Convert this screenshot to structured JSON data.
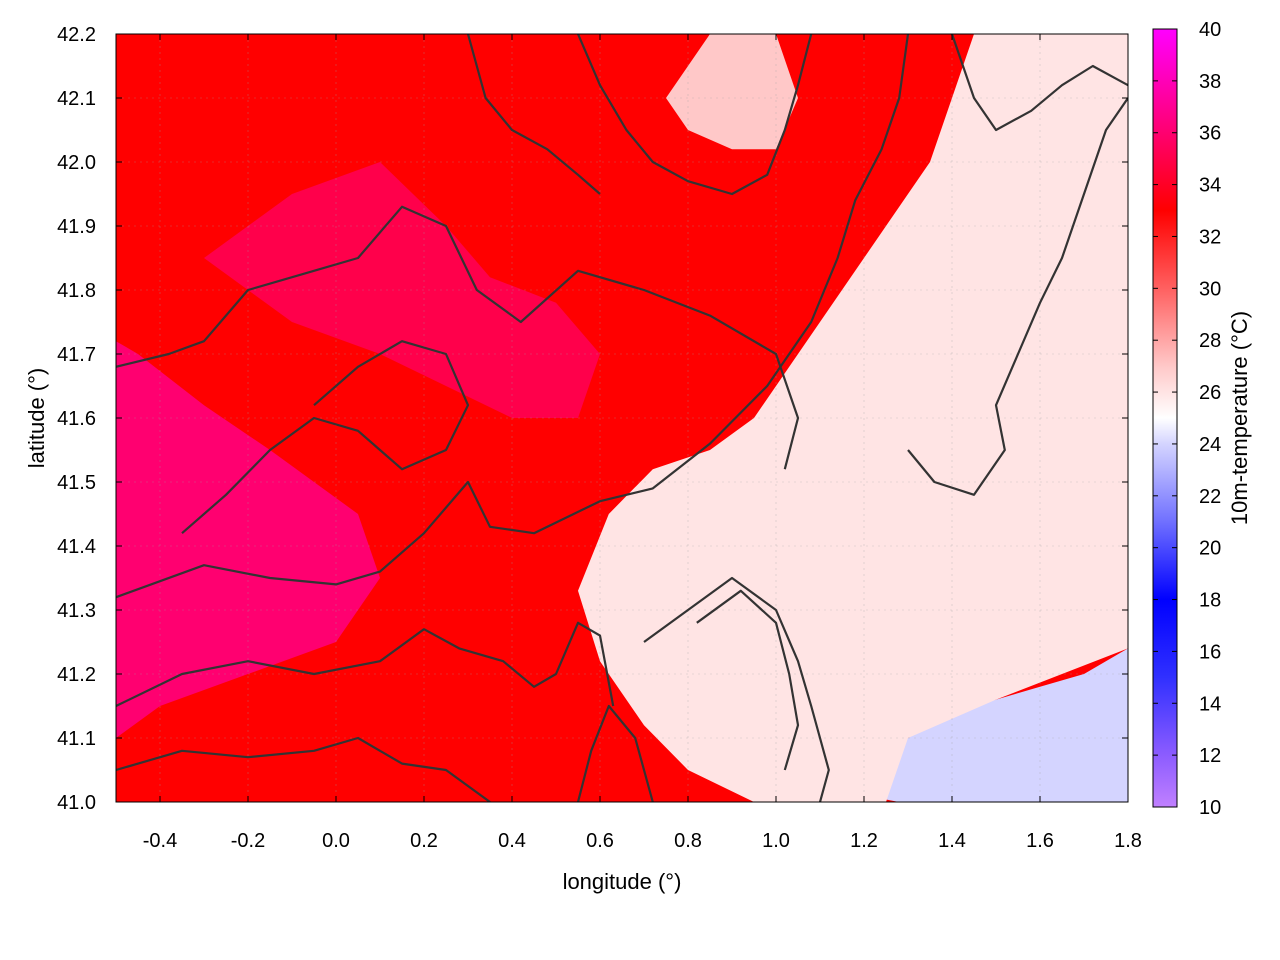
{
  "chart_data": {
    "type": "heatmap",
    "title": "",
    "xlabel": "longitude (°)",
    "ylabel": "latitude (°)",
    "colorbar_label": "10m-temperature (°C)",
    "xlim": [
      -0.5,
      1.8
    ],
    "ylim": [
      41.0,
      42.2
    ],
    "color_range": [
      10,
      40
    ],
    "x_ticks": [
      "-0.4",
      "-0.2",
      "0.0",
      "0.2",
      "0.4",
      "0.6",
      "0.8",
      "1.0",
      "1.2",
      "1.4",
      "1.6",
      "1.8"
    ],
    "x_tick_values": [
      -0.4,
      -0.2,
      0.0,
      0.2,
      0.4,
      0.6,
      0.8,
      1.0,
      1.2,
      1.4,
      1.6,
      1.8
    ],
    "y_ticks": [
      "41.0",
      "41.1",
      "41.2",
      "41.3",
      "41.4",
      "41.5",
      "41.6",
      "41.7",
      "41.8",
      "41.9",
      "42.0",
      "42.1",
      "42.2"
    ],
    "y_tick_values": [
      41.0,
      41.1,
      41.2,
      41.3,
      41.4,
      41.5,
      41.6,
      41.7,
      41.8,
      41.9,
      42.0,
      42.1,
      42.2
    ],
    "colorbar_ticks": [
      "10",
      "12",
      "14",
      "16",
      "18",
      "20",
      "22",
      "24",
      "26",
      "28",
      "30",
      "32",
      "34",
      "36",
      "38",
      "40"
    ],
    "colorbar_tick_values": [
      10,
      12,
      14,
      16,
      18,
      20,
      22,
      24,
      26,
      28,
      30,
      32,
      34,
      36,
      38,
      40
    ],
    "colormap": [
      {
        "value": 10,
        "color": "#c080ff"
      },
      {
        "value": 12,
        "color": "#8c5cff"
      },
      {
        "value": 15,
        "color": "#3030ff"
      },
      {
        "value": 18,
        "color": "#0000ff"
      },
      {
        "value": 21,
        "color": "#7070ff"
      },
      {
        "value": 24,
        "color": "#d4d4ff"
      },
      {
        "value": 25,
        "color": "#ffffff"
      },
      {
        "value": 27,
        "color": "#ffc8c8"
      },
      {
        "value": 30,
        "color": "#ff6060"
      },
      {
        "value": 33,
        "color": "#ff0000"
      },
      {
        "value": 36,
        "color": "#ff0070"
      },
      {
        "value": 40,
        "color": "#ff00ff"
      }
    ],
    "grid": true,
    "regions": [
      {
        "name": "sea",
        "value": 24,
        "points": [
          [
            1.28,
            41.0
          ],
          [
            1.8,
            41.0
          ],
          [
            1.8,
            41.24
          ],
          [
            1.7,
            41.2
          ],
          [
            1.6,
            41.18
          ],
          [
            1.5,
            41.16
          ],
          [
            1.4,
            41.14
          ],
          [
            1.3,
            41.1
          ],
          [
            1.22,
            41.07
          ],
          [
            1.15,
            41.05
          ],
          [
            1.05,
            41.03
          ]
        ]
      },
      {
        "name": "cool-zone",
        "value": 26,
        "points": [
          [
            1.25,
            41.0
          ],
          [
            0.95,
            41.0
          ],
          [
            0.8,
            41.05
          ],
          [
            0.7,
            41.12
          ],
          [
            0.6,
            41.22
          ],
          [
            0.55,
            41.33
          ],
          [
            0.62,
            41.45
          ],
          [
            0.72,
            41.52
          ],
          [
            0.85,
            41.55
          ],
          [
            0.95,
            41.6
          ],
          [
            1.05,
            41.7
          ],
          [
            1.15,
            41.8
          ],
          [
            1.25,
            41.9
          ],
          [
            1.35,
            42.0
          ],
          [
            1.4,
            42.1
          ],
          [
            1.45,
            42.2
          ],
          [
            1.8,
            42.2
          ],
          [
            1.8,
            41.24
          ],
          [
            1.5,
            41.16
          ],
          [
            1.3,
            41.1
          ]
        ]
      },
      {
        "name": "ne-cool",
        "value": 27,
        "points": [
          [
            0.75,
            42.1
          ],
          [
            0.85,
            42.2
          ],
          [
            1.0,
            42.2
          ],
          [
            1.05,
            42.1
          ],
          [
            1.0,
            42.02
          ],
          [
            0.9,
            42.02
          ],
          [
            0.8,
            42.05
          ]
        ]
      },
      {
        "name": "hot-core-west",
        "value": 36,
        "points": [
          [
            -0.5,
            41.1
          ],
          [
            -0.4,
            41.15
          ],
          [
            -0.2,
            41.2
          ],
          [
            0.0,
            41.25
          ],
          [
            0.1,
            41.35
          ],
          [
            0.05,
            41.45
          ],
          [
            -0.15,
            41.55
          ],
          [
            -0.3,
            41.62
          ],
          [
            -0.45,
            41.7
          ],
          [
            -0.5,
            41.72
          ]
        ]
      },
      {
        "name": "hot-core-north",
        "value": 35,
        "points": [
          [
            -0.3,
            41.85
          ],
          [
            -0.1,
            41.95
          ],
          [
            0.1,
            42.0
          ],
          [
            0.25,
            41.9
          ],
          [
            0.35,
            41.82
          ],
          [
            0.5,
            41.78
          ],
          [
            0.6,
            41.7
          ],
          [
            0.55,
            41.6
          ],
          [
            0.4,
            41.6
          ],
          [
            0.25,
            41.65
          ],
          [
            0.1,
            41.7
          ],
          [
            -0.1,
            41.75
          ]
        ]
      }
    ],
    "contours": [
      [
        [
          -0.5,
          41.05
        ],
        [
          -0.35,
          41.08
        ],
        [
          -0.2,
          41.07
        ],
        [
          -0.05,
          41.08
        ],
        [
          0.05,
          41.1
        ],
        [
          0.15,
          41.06
        ],
        [
          0.25,
          41.05
        ],
        [
          0.35,
          41.0
        ]
      ],
      [
        [
          -0.5,
          41.15
        ],
        [
          -0.35,
          41.2
        ],
        [
          -0.2,
          41.22
        ],
        [
          -0.05,
          41.2
        ],
        [
          0.1,
          41.22
        ],
        [
          0.2,
          41.27
        ],
        [
          0.28,
          41.24
        ],
        [
          0.38,
          41.22
        ],
        [
          0.45,
          41.18
        ],
        [
          0.5,
          41.2
        ],
        [
          0.55,
          41.28
        ],
        [
          0.6,
          41.26
        ],
        [
          0.63,
          41.15
        ]
      ],
      [
        [
          -0.5,
          41.32
        ],
        [
          -0.3,
          41.37
        ],
        [
          -0.15,
          41.35
        ],
        [
          0.0,
          41.34
        ],
        [
          0.1,
          41.36
        ],
        [
          0.2,
          41.42
        ],
        [
          0.3,
          41.5
        ],
        [
          0.35,
          41.43
        ],
        [
          0.45,
          41.42
        ],
        [
          0.6,
          41.47
        ],
        [
          0.72,
          41.49
        ],
        [
          0.85,
          41.56
        ],
        [
          0.98,
          41.65
        ],
        [
          1.08,
          41.75
        ],
        [
          1.14,
          41.85
        ],
        [
          1.18,
          41.94
        ],
        [
          1.24,
          42.02
        ],
        [
          1.28,
          42.1
        ],
        [
          1.3,
          42.2
        ]
      ],
      [
        [
          -0.5,
          41.68
        ],
        [
          -0.38,
          41.7
        ],
        [
          -0.3,
          41.72
        ],
        [
          -0.2,
          41.8
        ],
        [
          -0.05,
          41.83
        ],
        [
          0.05,
          41.85
        ],
        [
          0.15,
          41.93
        ],
        [
          0.25,
          41.9
        ],
        [
          0.32,
          41.8
        ],
        [
          0.42,
          41.75
        ],
        [
          0.55,
          41.83
        ],
        [
          0.7,
          41.8
        ],
        [
          0.85,
          41.76
        ],
        [
          1.0,
          41.7
        ],
        [
          1.05,
          41.6
        ],
        [
          1.02,
          41.52
        ]
      ],
      [
        [
          -0.35,
          41.42
        ],
        [
          -0.25,
          41.48
        ],
        [
          -0.15,
          41.55
        ],
        [
          -0.05,
          41.6
        ],
        [
          0.05,
          41.58
        ],
        [
          0.15,
          41.52
        ],
        [
          0.25,
          41.55
        ],
        [
          0.3,
          41.62
        ],
        [
          0.25,
          41.7
        ],
        [
          0.15,
          41.72
        ],
        [
          0.05,
          41.68
        ],
        [
          -0.05,
          41.62
        ]
      ],
      [
        [
          0.55,
          41.0
        ],
        [
          0.58,
          41.08
        ],
        [
          0.62,
          41.15
        ],
        [
          0.68,
          41.1
        ],
        [
          0.72,
          41.0
        ]
      ],
      [
        [
          0.7,
          41.25
        ],
        [
          0.8,
          41.3
        ],
        [
          0.9,
          41.35
        ],
        [
          1.0,
          41.3
        ],
        [
          1.05,
          41.22
        ],
        [
          1.08,
          41.15
        ],
        [
          1.12,
          41.05
        ],
        [
          1.1,
          41.0
        ]
      ],
      [
        [
          0.82,
          41.28
        ],
        [
          0.92,
          41.33
        ],
        [
          1.0,
          41.28
        ],
        [
          1.03,
          41.2
        ],
        [
          1.05,
          41.12
        ],
        [
          1.02,
          41.05
        ]
      ],
      [
        [
          1.3,
          41.55
        ],
        [
          1.36,
          41.5
        ],
        [
          1.45,
          41.48
        ],
        [
          1.52,
          41.55
        ],
        [
          1.5,
          41.62
        ],
        [
          1.55,
          41.7
        ],
        [
          1.6,
          41.78
        ],
        [
          1.65,
          41.85
        ],
        [
          1.7,
          41.95
        ],
        [
          1.75,
          42.05
        ],
        [
          1.8,
          42.1
        ]
      ],
      [
        [
          0.55,
          42.2
        ],
        [
          0.6,
          42.12
        ],
        [
          0.66,
          42.05
        ],
        [
          0.72,
          42.0
        ],
        [
          0.8,
          41.97
        ],
        [
          0.9,
          41.95
        ],
        [
          0.98,
          41.98
        ],
        [
          1.02,
          42.05
        ],
        [
          1.05,
          42.12
        ],
        [
          1.08,
          42.2
        ]
      ],
      [
        [
          0.3,
          42.2
        ],
        [
          0.34,
          42.1
        ],
        [
          0.4,
          42.05
        ],
        [
          0.48,
          42.02
        ],
        [
          0.55,
          41.98
        ],
        [
          0.6,
          41.95
        ]
      ],
      [
        [
          1.4,
          42.2
        ],
        [
          1.45,
          42.1
        ],
        [
          1.5,
          42.05
        ],
        [
          1.58,
          42.08
        ],
        [
          1.65,
          42.12
        ],
        [
          1.72,
          42.15
        ],
        [
          1.8,
          42.12
        ]
      ]
    ]
  }
}
